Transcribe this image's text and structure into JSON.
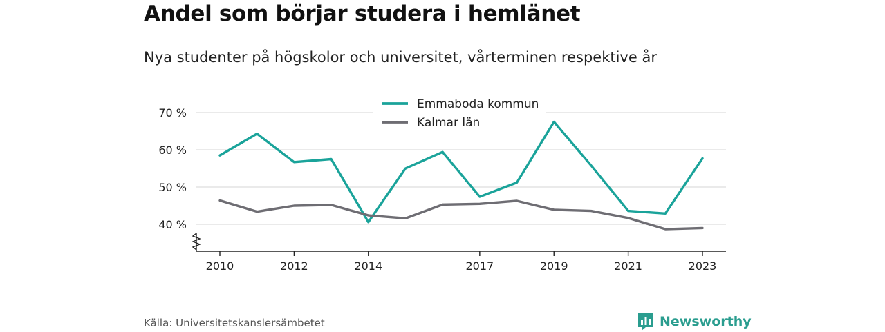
{
  "title": "Andel som börjar studera i hemlänet",
  "subtitle": "Nya studenter på högskolor och universitet, vårterminen respektive år",
  "source": "Källa: Universitetskanslersämbetet",
  "brand": {
    "name": "Newsworthy",
    "icon": "bar-chart-logo-icon",
    "color": "#2a9d8f"
  },
  "chart_data": {
    "type": "line",
    "x": [
      2010,
      2011,
      2012,
      2013,
      2014,
      2015,
      2016,
      2017,
      2018,
      2019,
      2020,
      2021,
      2022,
      2023
    ],
    "x_ticks": [
      2010,
      2012,
      2014,
      2017,
      2019,
      2021,
      2023
    ],
    "y_ticks": [
      40,
      50,
      60,
      70
    ],
    "y_tick_suffix": " %",
    "ylim": [
      33,
      72
    ],
    "y_axis_break": true,
    "grid": true,
    "legend_position": "top-center",
    "series": [
      {
        "name": "Emmaboda kommun",
        "color": "#1aa39a",
        "values": [
          58.5,
          64.3,
          56.7,
          57.5,
          40.6,
          55.0,
          59.4,
          47.4,
          51.2,
          67.5,
          55.8,
          43.6,
          42.9,
          57.7
        ]
      },
      {
        "name": "Kalmar län",
        "color": "#6e6d73",
        "values": [
          46.4,
          43.4,
          45.0,
          45.2,
          42.4,
          41.6,
          45.3,
          45.5,
          46.3,
          43.9,
          43.6,
          41.7,
          38.7,
          39.0
        ]
      }
    ]
  }
}
